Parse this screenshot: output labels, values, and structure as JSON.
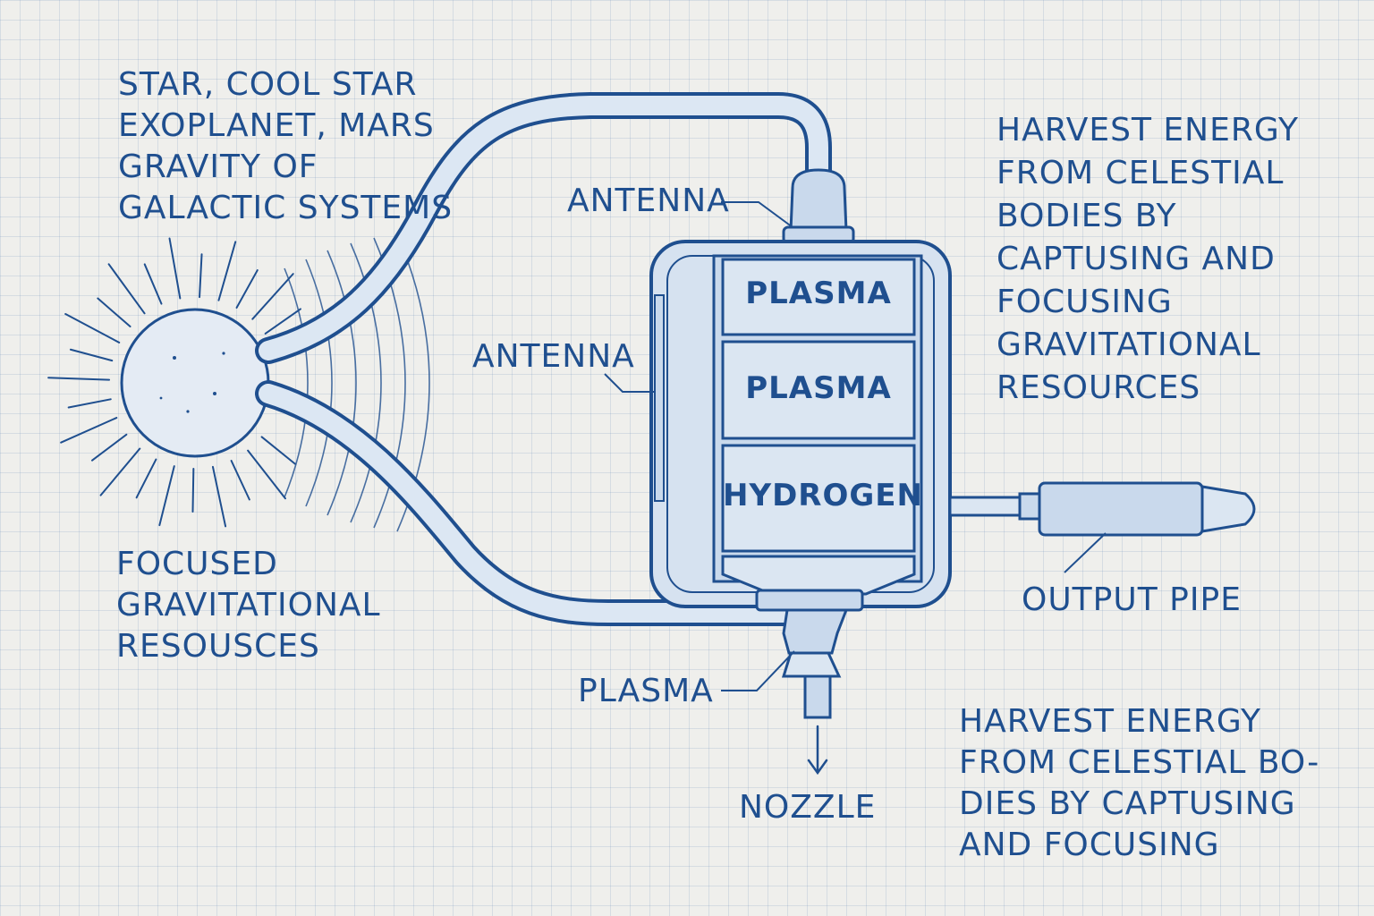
{
  "colors": {
    "ink": "#1f4f8f",
    "fill": "#c9d9ec",
    "fill_light": "#dce7f3",
    "paper": "#efefec",
    "grid": "#b8c8dc"
  },
  "source_notes": [
    "STAR, COOL STAR",
    "EXOPLANET, MARS",
    "GRAVITY OF",
    "GALACTIC SYSTEMS"
  ],
  "focus_notes": [
    "FOCUSED",
    "GRAVITATIONAL",
    "RESOUSCES"
  ],
  "labels": {
    "antenna_top": "ANTENNA",
    "antenna_side": "ANTENNA",
    "plasma_nozzle": "PLASMA",
    "nozzle": "NOZZLE",
    "output_pipe": "OUTPUT PIPE"
  },
  "chamber_layers": [
    "PLASMA",
    "PLASMA",
    "HYDROGEN"
  ],
  "description_top": [
    "HARVEST ENERGY",
    "FROM CELESTIAL",
    "BODIES BY",
    "CAPTUSING AND",
    "FOCUSING",
    "GRAVITATIONAL",
    "RESOURCES"
  ],
  "description_bottom": [
    "HARVEST ENERGY",
    "FROM CELESTIAL BO-",
    "DIES BY CAPTUSING",
    "AND FOCUSING"
  ],
  "icons": {
    "star": "star-icon",
    "arrow": "arrow-down-icon"
  }
}
